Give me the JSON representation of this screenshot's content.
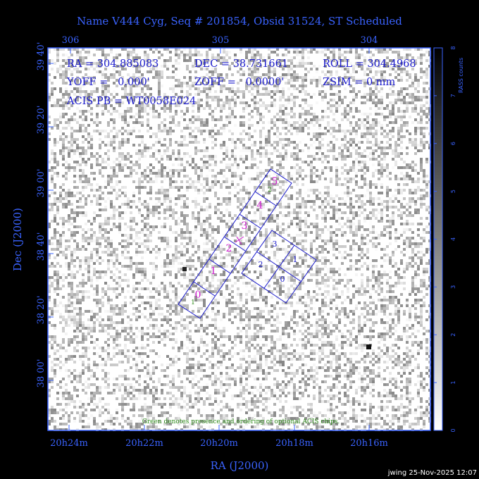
{
  "title": "Name V444 Cyg, Seq # 201854, Obsid 31524, ST Scheduled",
  "header": {
    "ra_label": "RA = 304.885083",
    "dec_label": "DEC = 38.731661",
    "roll_label": "ROLL = 304.4968",
    "yoff_label": "YOFF =   0.000'",
    "zoff_label": "ZOFF =   0.0000'",
    "zsim_label": "ZSIM = 0 mm",
    "acis_label": "ACIS PB = WT0058E024"
  },
  "note": "Green denotes presence and ordering of optional ACIS chips.",
  "footer": "jwing 25-Nov-2025 12:07",
  "colorbar": {
    "label": "RASS counts",
    "ticks": [
      "0",
      "1",
      "2",
      "3",
      "4",
      "5",
      "6",
      "7",
      "8"
    ]
  },
  "chart_data": {
    "type": "sky-image",
    "xlabel": "RA (J2000)",
    "ylabel": "Dec (J2000)",
    "top_ticks": [
      "306",
      "305",
      "304"
    ],
    "bottom_ticks": [
      "20h24m",
      "20h22m",
      "20h20m",
      "20h18m",
      "20h16m"
    ],
    "left_ticks": [
      "39 40'",
      "39 20'",
      "39 00'",
      "38 40'",
      "38 20'",
      "38 00'"
    ],
    "colorbar_range": [
      0,
      8
    ],
    "chips": [
      {
        "id": "0",
        "array": "ACIS-S",
        "color": "#d01fd0"
      },
      {
        "id": "1",
        "array": "ACIS-S",
        "color": "#d01fd0"
      },
      {
        "id": "2",
        "array": "ACIS-S",
        "color": "#d01fd0"
      },
      {
        "id": "3",
        "array": "ACIS-S",
        "color": "#d01fd0"
      },
      {
        "id": "4",
        "array": "ACIS-S",
        "color": "#d01fd0"
      },
      {
        "id": "5",
        "array": "ACIS-S",
        "color": "#d01fd0"
      },
      {
        "id": "0",
        "array": "ACIS-I",
        "color": "#1a1acc"
      },
      {
        "id": "1",
        "array": "ACIS-I",
        "color": "#1a1acc"
      },
      {
        "id": "2",
        "array": "ACIS-I",
        "color": "#1a1acc"
      },
      {
        "id": "3",
        "array": "ACIS-I",
        "color": "#1a1acc"
      }
    ],
    "optional_chip_order": [
      "1",
      "2"
    ]
  }
}
